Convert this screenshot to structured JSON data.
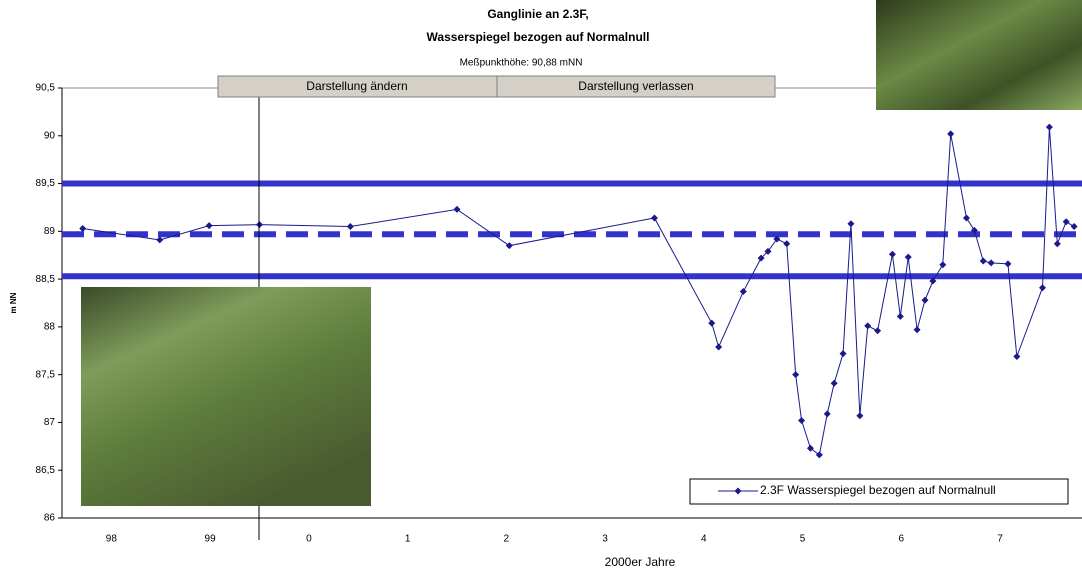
{
  "chart_data": {
    "type": "line",
    "title": "Ganglinie an 2.3F,",
    "title_line2": "Wasserspiegel bezogen auf Normalnull",
    "subtitle": "Meßpunkthöhe: 90,88 mNN",
    "buttons": [
      "Darstellung ändern",
      "Darstellung verlassen"
    ],
    "x_label": "2000er Jahre",
    "y_label": "m NN",
    "xlim": [
      1998,
      2008.33
    ],
    "xticks": [
      {
        "value": 1998.5,
        "label": "98"
      },
      {
        "value": 1999.5,
        "label": "99"
      },
      {
        "value": 2000.5,
        "label": "0"
      },
      {
        "value": 2001.5,
        "label": "1"
      },
      {
        "value": 2002.5,
        "label": "2"
      },
      {
        "value": 2003.5,
        "label": "3"
      },
      {
        "value": 2004.5,
        "label": "4"
      },
      {
        "value": 2005.5,
        "label": "5"
      },
      {
        "value": 2006.5,
        "label": "6"
      },
      {
        "value": 2007.5,
        "label": "7"
      }
    ],
    "ylim": [
      86,
      90.5
    ],
    "yticks": [
      {
        "value": 86,
        "label": "86"
      },
      {
        "value": 86.5,
        "label": "86,5"
      },
      {
        "value": 87,
        "label": "87"
      },
      {
        "value": 87.5,
        "label": "87,5"
      },
      {
        "value": 88,
        "label": "88"
      },
      {
        "value": 88.5,
        "label": "88,5"
      },
      {
        "value": 89,
        "label": "89"
      },
      {
        "value": 89.5,
        "label": "89,5"
      },
      {
        "value": 90,
        "label": "90"
      },
      {
        "value": 90.5,
        "label": "90,5"
      }
    ],
    "reference_lines": [
      {
        "value": 89.5,
        "style": "solid"
      },
      {
        "value": 88.97,
        "style": "dashed"
      },
      {
        "value": 88.53,
        "style": "solid"
      }
    ],
    "reference_color": "#3333cc",
    "legend": "lower right",
    "series": [
      {
        "name": "2.3F Wasserspiegel bezogen auf Normalnull",
        "color": "#1a1a8c",
        "x": [
          1998.21,
          1998.99,
          1999.49,
          2000.0,
          2000.92,
          2002.0,
          2002.53,
          2004.0,
          2004.58,
          2004.65,
          2004.9,
          2005.08,
          2005.15,
          2005.24,
          2005.34,
          2005.43,
          2005.49,
          2005.58,
          2005.67,
          2005.75,
          2005.82,
          2005.91,
          2005.99,
          2006.08,
          2006.16,
          2006.26,
          2006.41,
          2006.49,
          2006.57,
          2006.66,
          2006.74,
          2006.82,
          2006.92,
          2007.0,
          2007.16,
          2007.24,
          2007.33,
          2007.41,
          2007.58,
          2007.67,
          2007.93,
          2008.0,
          2008.08,
          2008.17,
          2008.25
        ],
        "values": [
          89.03,
          88.91,
          89.06,
          89.07,
          89.05,
          89.23,
          88.85,
          89.14,
          88.04,
          87.79,
          88.37,
          88.72,
          88.79,
          88.92,
          88.87,
          87.5,
          87.02,
          86.73,
          86.66,
          87.09,
          87.41,
          87.72,
          89.08,
          87.07,
          88.01,
          87.96,
          88.76,
          88.11,
          88.73,
          87.97,
          88.28,
          88.48,
          88.65,
          90.02,
          89.14,
          89.01,
          88.69,
          88.67,
          88.66,
          87.69,
          88.41,
          90.09,
          88.87,
          89.1,
          89.05
        ]
      }
    ]
  }
}
